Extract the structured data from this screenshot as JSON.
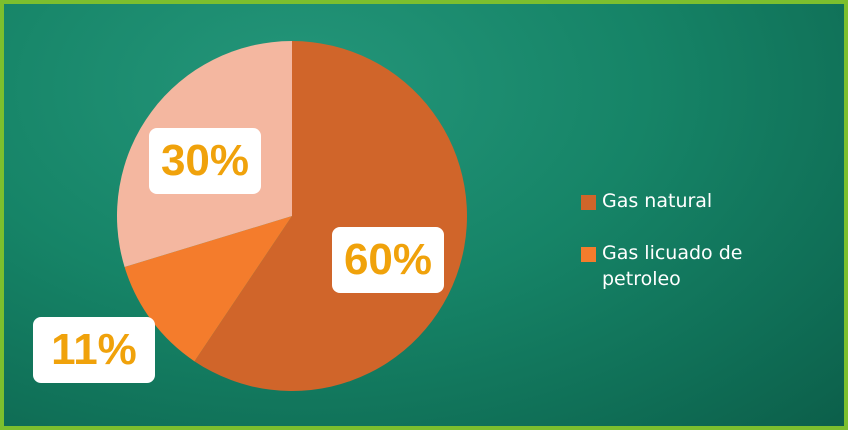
{
  "chart_data": {
    "type": "pie",
    "title": "",
    "slices": [
      {
        "label": "Gas natural",
        "value": 60,
        "display": "60%",
        "color": "#d0652a"
      },
      {
        "label": "",
        "value": 11,
        "display": "11%",
        "color": "#f47c2c"
      },
      {
        "label": "",
        "value": 30,
        "display": "30%",
        "color": "#f4b7a0"
      }
    ],
    "legend": [
      {
        "label": "Gas natural",
        "color": "#d0652a"
      },
      {
        "label": "Gas licuado de petroleo",
        "color": "#f47c2c"
      }
    ],
    "legend_position": "right"
  },
  "colors": {
    "border": "#7cbf2e",
    "background": "#168467",
    "label_text": "#f0a20b"
  }
}
